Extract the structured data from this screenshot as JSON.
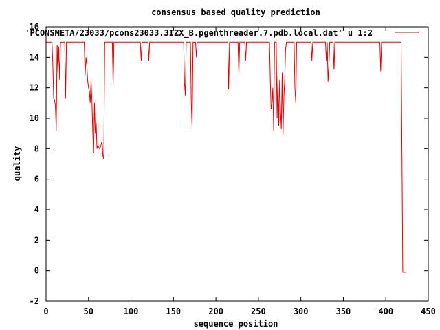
{
  "chart_data": {
    "type": "line",
    "title": "consensus based quality prediction",
    "xlabel": "sequence position",
    "ylabel": "quality",
    "xlim": [
      0,
      450
    ],
    "ylim": [
      -2,
      16
    ],
    "xticks": [
      0,
      50,
      100,
      150,
      200,
      250,
      300,
      350,
      400,
      450
    ],
    "yticks": [
      -2,
      0,
      2,
      4,
      6,
      8,
      10,
      12,
      14,
      16
    ],
    "legend_position": "top-right",
    "series": [
      {
        "name": "'PCONSMETA/23033/pcons23033.3IZX_B.pgenthreader.7.pdb.local.dat' u 1:2",
        "color": "#e00000",
        "points": [
          [
            0,
            15
          ],
          [
            7,
            15
          ],
          [
            8,
            13.5
          ],
          [
            9,
            11.3
          ],
          [
            10,
            11.2
          ],
          [
            11,
            10.8
          ],
          [
            12,
            9.2
          ],
          [
            13,
            14.8
          ],
          [
            14,
            13
          ],
          [
            15,
            14.7
          ],
          [
            16,
            12.5
          ],
          [
            17,
            15
          ],
          [
            22,
            15
          ],
          [
            23,
            11.3
          ],
          [
            24,
            15
          ],
          [
            45,
            15
          ],
          [
            46,
            12.8
          ],
          [
            47,
            14
          ],
          [
            48,
            13.5
          ],
          [
            49,
            12.5
          ],
          [
            50,
            12
          ],
          [
            51,
            11.8
          ],
          [
            52,
            11
          ],
          [
            53,
            12.5
          ],
          [
            54,
            11.2
          ],
          [
            55,
            9
          ],
          [
            56,
            7.7
          ],
          [
            57,
            11
          ],
          [
            58,
            9
          ],
          [
            59,
            9.7
          ],
          [
            60,
            8
          ],
          [
            61,
            8.2
          ],
          [
            62,
            8.1
          ],
          [
            63,
            8
          ],
          [
            64,
            8.1
          ],
          [
            65,
            8.3
          ],
          [
            66,
            8.5
          ],
          [
            67,
            7.5
          ],
          [
            68,
            7.3
          ],
          [
            69,
            15
          ],
          [
            78,
            15
          ],
          [
            79,
            12.2
          ],
          [
            80,
            15
          ],
          [
            111,
            15
          ],
          [
            112,
            13.8
          ],
          [
            113,
            15
          ],
          [
            120,
            15
          ],
          [
            121,
            13.8
          ],
          [
            122,
            15
          ],
          [
            162,
            15
          ],
          [
            163,
            12.3
          ],
          [
            164,
            11.5
          ],
          [
            165,
            15
          ],
          [
            170,
            15
          ],
          [
            171,
            11
          ],
          [
            172,
            9.3
          ],
          [
            173,
            15
          ],
          [
            176,
            15
          ],
          [
            177,
            14
          ],
          [
            178,
            15
          ],
          [
            214,
            15
          ],
          [
            215,
            11.9
          ],
          [
            216,
            15
          ],
          [
            226,
            15
          ],
          [
            227,
            12.9
          ],
          [
            228,
            15
          ],
          [
            234,
            15
          ],
          [
            235,
            13.8
          ],
          [
            236,
            15
          ],
          [
            263,
            15
          ],
          [
            264,
            12.5
          ],
          [
            265,
            10.6
          ],
          [
            266,
            11
          ],
          [
            267,
            12
          ],
          [
            268,
            9.2
          ],
          [
            269,
            15
          ],
          [
            271,
            15
          ],
          [
            272,
            10
          ],
          [
            273,
            12.8
          ],
          [
            274,
            9.5
          ],
          [
            275,
            12.5
          ],
          [
            276,
            10.5
          ],
          [
            277,
            9.3
          ],
          [
            278,
            13
          ],
          [
            279,
            8.9
          ],
          [
            280,
            11.5
          ],
          [
            281,
            12.5
          ],
          [
            282,
            14.5
          ],
          [
            283,
            15
          ],
          [
            292,
            15
          ],
          [
            293,
            12
          ],
          [
            294,
            11
          ],
          [
            295,
            15
          ],
          [
            312,
            15
          ],
          [
            313,
            13.8
          ],
          [
            314,
            15
          ],
          [
            329,
            15
          ],
          [
            330,
            13.8
          ],
          [
            331,
            15
          ],
          [
            332,
            12.4
          ],
          [
            333,
            13.4
          ],
          [
            334,
            15
          ],
          [
            338,
            15
          ],
          [
            339,
            13.2
          ],
          [
            340,
            15
          ],
          [
            393,
            15
          ],
          [
            394,
            13.1
          ],
          [
            395,
            15
          ],
          [
            418,
            15
          ],
          [
            419,
            7.5
          ],
          [
            420,
            -0.1
          ],
          [
            424,
            -0.1
          ]
        ]
      }
    ]
  }
}
